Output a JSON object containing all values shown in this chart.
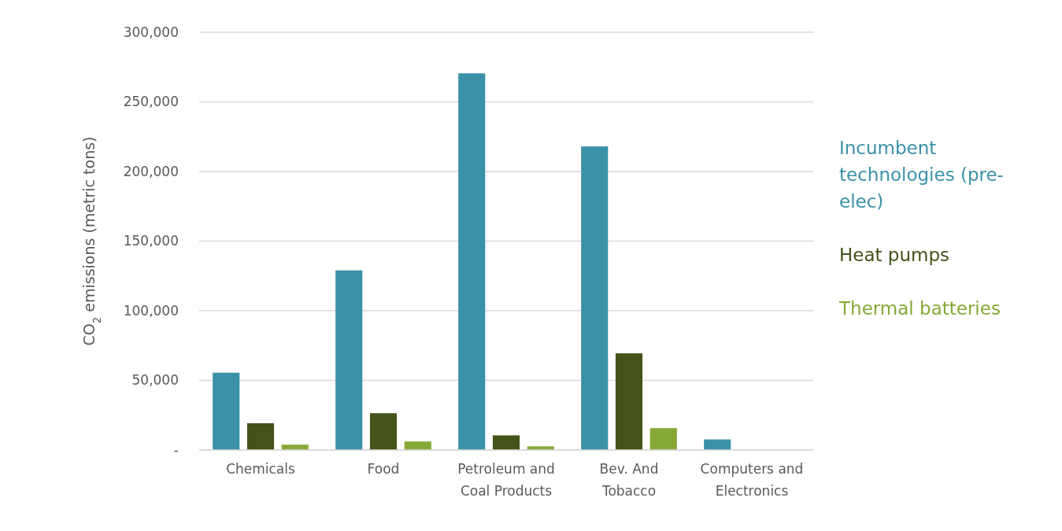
{
  "chart_data": {
    "type": "bar",
    "ylabel": "CO$_{2}$ emissions (metric tons)",
    "categories": [
      "Chemicals",
      "Food",
      "Petroleum and Coal Products",
      "Bev. And Tobacco",
      "Computers and Electronics"
    ],
    "series": [
      {
        "name": "Incumbent technologies (pre-elec)",
        "color": "#3a91a8",
        "values": [
          55500,
          129000,
          270500,
          218000,
          7600
        ]
      },
      {
        "name": "Heat pumps",
        "color": "#43531a",
        "values": [
          19200,
          26400,
          10500,
          69400,
          0
        ]
      },
      {
        "name": "Thermal batteries",
        "color": "#86a935",
        "values": [
          3800,
          6100,
          2600,
          15700,
          0
        ]
      }
    ],
    "ylim": [
      0,
      300000
    ],
    "yticks": [
      {
        "value": 0,
        "label": "-"
      },
      {
        "value": 50000,
        "label": "50,000"
      },
      {
        "value": 100000,
        "label": "100,000"
      },
      {
        "value": 150000,
        "label": "150,000"
      },
      {
        "value": 200000,
        "label": "200,000"
      },
      {
        "value": 250000,
        "label": "250,000"
      },
      {
        "value": 300000,
        "label": "300,000"
      }
    ],
    "grid": "y",
    "legend": "right"
  }
}
